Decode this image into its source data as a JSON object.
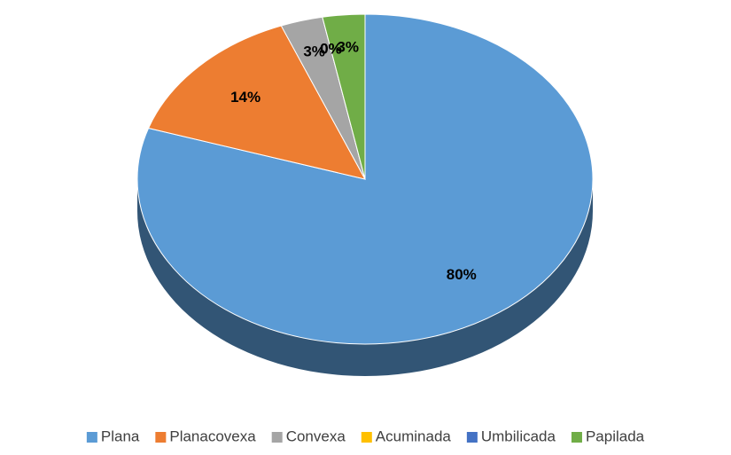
{
  "chart_data": {
    "type": "pie",
    "categories": [
      "Plana",
      "Planacovexa",
      "Convexa",
      "Acuminada",
      "Umbilicada",
      "Papilada"
    ],
    "values": [
      80,
      14,
      3,
      0,
      0,
      3
    ],
    "value_labels": [
      "80%",
      "14%",
      "3%",
      "0%",
      "0%",
      "3%"
    ],
    "colors": [
      "#5b9bd5",
      "#ed7d31",
      "#a5a5a5",
      "#ffc000",
      "#4472c4",
      "#70ad47"
    ],
    "legend": "bottom"
  }
}
